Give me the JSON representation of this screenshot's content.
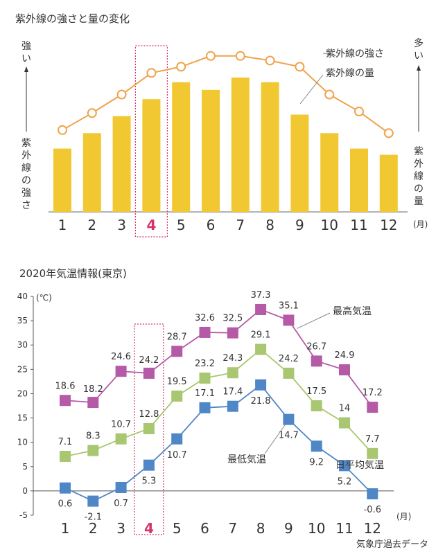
{
  "uv_title": "紫外線の強さと量の変化",
  "uv_left_label": "紫外線の強さ",
  "uv_left_top": "強い",
  "uv_right_label": "紫外線の量",
  "uv_right_top": "多い",
  "uv_month_unit": "(月)",
  "temp_title": "2020年気温情報(東京)",
  "temp_unit": "(℃)",
  "temp_month_unit": "(月)",
  "source": "気象庁過去データ",
  "highlight_month": "4",
  "colors": {
    "uv_bar": "#f2c832",
    "uv_line": "#f0a24a",
    "max": "#b55aa6",
    "avg": "#a8c770",
    "min": "#4f86c6",
    "highlight": "#d6336c"
  },
  "chart_data": [
    {
      "type": "bar",
      "title": "紫外線の強さと量の変化",
      "categories": [
        "1",
        "2",
        "3",
        "4",
        "5",
        "6",
        "7",
        "8",
        "9",
        "10",
        "11",
        "12"
      ],
      "xlabel": "(月)",
      "y_scale": "relative (no numeric values printed)",
      "series": [
        {
          "name": "紫外線の量",
          "type": "bar",
          "values": [
            41,
            51,
            62,
            73,
            84,
            79,
            87,
            84,
            63,
            51,
            41,
            37
          ]
        },
        {
          "name": "紫外線の強さ",
          "type": "line",
          "values": [
            53,
            64,
            76,
            90,
            94,
            101,
            101,
            98,
            94,
            76,
            65,
            51
          ]
        }
      ],
      "annotations": [
        "強い",
        "多い"
      ]
    },
    {
      "type": "line",
      "title": "2020年気温情報(東京)",
      "categories": [
        "1",
        "2",
        "3",
        "4",
        "5",
        "6",
        "7",
        "8",
        "9",
        "10",
        "11",
        "12"
      ],
      "xlabel": "(月)",
      "ylabel": "(℃)",
      "ylim": [
        -5,
        40
      ],
      "yticks": [
        -5,
        0,
        5,
        10,
        15,
        20,
        25,
        30,
        35,
        40
      ],
      "grid": false,
      "series": [
        {
          "name": "最高気温",
          "values": [
            18.6,
            18.2,
            24.6,
            24.2,
            28.7,
            32.6,
            32.5,
            37.3,
            35.1,
            26.7,
            24.9,
            17.2
          ]
        },
        {
          "name": "日平均気温",
          "values": [
            7.1,
            8.3,
            10.7,
            12.8,
            19.5,
            23.2,
            24.3,
            29.1,
            24.2,
            17.5,
            14,
            7.7
          ]
        },
        {
          "name": "最低気温",
          "values": [
            0.6,
            -2.1,
            0.7,
            5.3,
            10.7,
            17.1,
            17.4,
            21.8,
            14.7,
            9.2,
            5.2,
            -0.6
          ]
        }
      ]
    }
  ]
}
